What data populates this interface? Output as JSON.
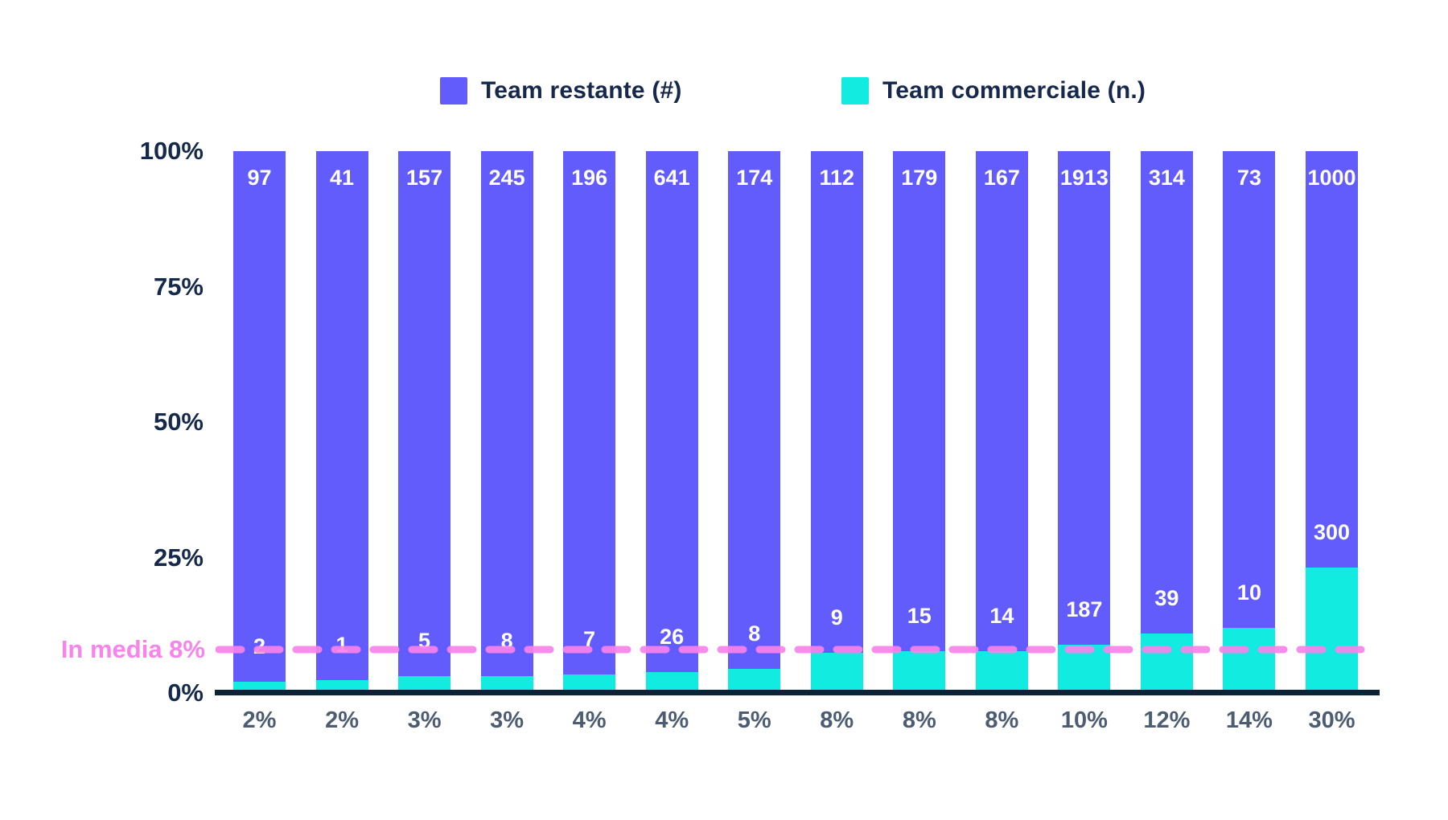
{
  "legend": {
    "items": [
      {
        "label": "Team restante (#)",
        "color": "#635CFC"
      },
      {
        "label": "Team commerciale (n.)",
        "color": "#12EBE0"
      }
    ]
  },
  "annotation": {
    "label": "In media 8%",
    "value_pct": 8,
    "color": "#F883EA"
  },
  "colors": {
    "restante": "#635CFC",
    "commerciale": "#12EBE0",
    "axis_text": "#15294A",
    "x_tick_text": "#4C5C72",
    "baseline": "#0C2236",
    "bar_value_text": "#ffffff",
    "average_line": "#F883EA"
  },
  "chart_data": {
    "type": "bar",
    "stacked": true,
    "normalized": "percent",
    "title": "",
    "xlabel": "",
    "ylabel": "",
    "categories": [
      "2%",
      "2%",
      "3%",
      "3%",
      "4%",
      "4%",
      "5%",
      "8%",
      "8%",
      "8%",
      "10%",
      "12%",
      "14%",
      "30%"
    ],
    "series": [
      {
        "name": "Team commerciale (n.)",
        "color": "#12EBE0",
        "values": [
          2,
          1,
          5,
          8,
          7,
          26,
          8,
          9,
          15,
          14,
          187,
          39,
          10,
          300
        ]
      },
      {
        "name": "Team restante (#)",
        "color": "#635CFC",
        "values": [
          97,
          41,
          157,
          245,
          196,
          641,
          174,
          112,
          179,
          167,
          1913,
          314,
          73,
          1000
        ]
      }
    ],
    "yaxis": {
      "range": [
        0,
        100
      ],
      "tick_values": [
        0,
        25,
        50,
        75,
        100
      ],
      "tick_labels": [
        "0%",
        "25%",
        "50%",
        "75%",
        "100%"
      ]
    },
    "reference_line": {
      "label": "In media 8%",
      "value_pct": 8
    },
    "legend_position": "top",
    "grid": false
  }
}
